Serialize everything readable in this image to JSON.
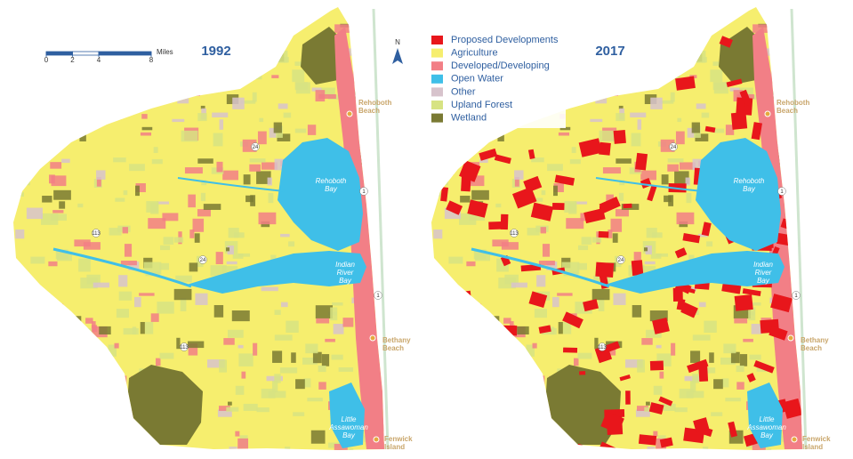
{
  "maps": [
    {
      "year": "1992"
    },
    {
      "year": "2017"
    }
  ],
  "legend": [
    {
      "name": "Proposed Developments",
      "color": "#e8161b"
    },
    {
      "name": "Agriculture",
      "color": "#f6ee6e"
    },
    {
      "name": "Developed/Developing",
      "color": "#f27f86"
    },
    {
      "name": "Open Water",
      "color": "#3fbfe8"
    },
    {
      "name": "Other",
      "color": "#d7c3cc"
    },
    {
      "name": "Upland Forest",
      "color": "#d7e383"
    },
    {
      "name": "Wetland",
      "color": "#7a7a33"
    }
  ],
  "scale": {
    "unit": "Miles",
    "ticks": [
      0,
      2,
      4,
      8
    ]
  },
  "north": "N",
  "places": {
    "rehoboth_beach": "Rehoboth Beach",
    "rehoboth_bay": "Rehoboth Bay",
    "indian_river_bay": "Indian River Bay",
    "bethany_beach": "Bethany Beach",
    "little_assawoman_bay": "Little Assawoman Bay",
    "fenwick_island": "Fenwick Island"
  },
  "routes": [
    "24",
    "1",
    "113"
  ]
}
